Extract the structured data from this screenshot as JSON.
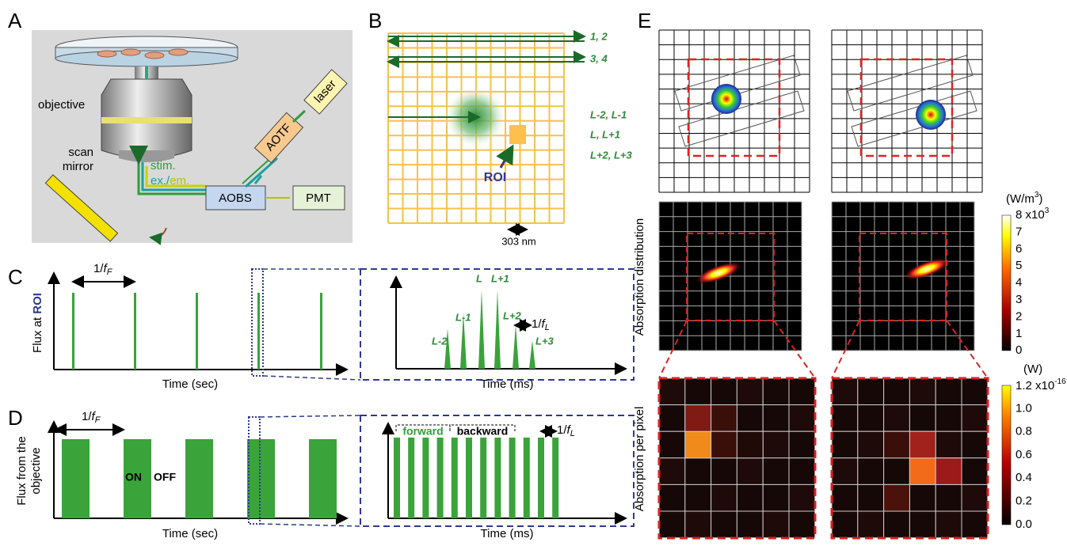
{
  "panels": {
    "a": "A",
    "b": "B",
    "c": "C",
    "d": "D",
    "e": "E"
  },
  "panel_a": {
    "objective": "objective",
    "laser": "laser",
    "aotf": "AOTF",
    "scan_mirror": [
      "scan",
      "mirror"
    ],
    "stim": "stim.",
    "ex": "ex./",
    "em": "em.",
    "aobs": "AOBS",
    "pmt": "PMT"
  },
  "panel_b": {
    "scan_lines": [
      "1, 2",
      "3, 4",
      "L-2, L-1",
      "L, L+1",
      "L+2, L+3"
    ],
    "roi": "ROI",
    "scale": "303 nm"
  },
  "panel_c": {
    "period": {
      "prefix": "1/",
      "var": "f",
      "sub": "F"
    },
    "y_label": {
      "text": "Flux at ",
      "highlight": "ROI"
    },
    "x_label": "Time (sec)",
    "inset": {
      "pulses": [
        "L-2",
        "L-1",
        "L",
        "L+1",
        "L+2",
        "L+3"
      ],
      "period": {
        "prefix": "1/",
        "var": "f",
        "sub": "L"
      },
      "x_label": "Time (ms)"
    }
  },
  "panel_d": {
    "period": {
      "prefix": "1/",
      "var": "f",
      "sub": "F"
    },
    "y_label": [
      "Flux from the",
      "objective"
    ],
    "on": "ON",
    "off": "OFF",
    "x_label": "Time (sec)",
    "inset": {
      "forward": "forward",
      "backward": "backward",
      "period": {
        "prefix": "1/",
        "var": "f",
        "sub": "L"
      },
      "x_label": "Time (ms)"
    }
  },
  "panel_e": {
    "row_labels": [
      "Absorption distribution",
      "Absorption per pixel"
    ],
    "colorbar_top": {
      "unit": {
        "base": "(W/m",
        "sup": "3",
        "end": ")"
      },
      "max": {
        "base": "8 x10",
        "sup": "3"
      },
      "ticks": [
        "7",
        "6",
        "5",
        "4",
        "3",
        "2",
        "1",
        "0"
      ]
    },
    "colorbar_bottom": {
      "unit": "(W)",
      "max": {
        "base": "1.2 x10",
        "sup": "-16"
      },
      "ticks": [
        "1.0",
        "0.8",
        "0.6",
        "0.4",
        "0.2",
        "0.0"
      ]
    }
  }
}
